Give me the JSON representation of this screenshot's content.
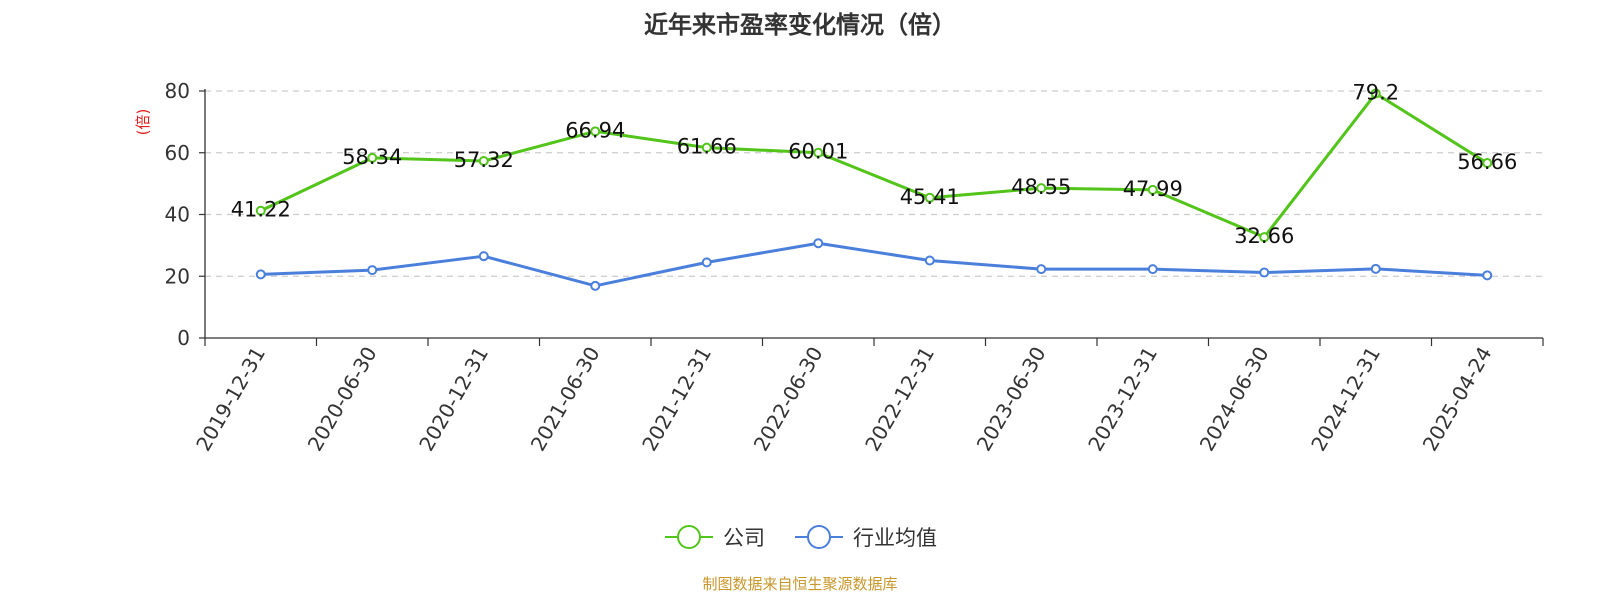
{
  "chart_data": {
    "type": "line",
    "title": "近年来市盈率变化情况（倍）",
    "ylabel": "(倍)",
    "ylim": [
      0,
      80
    ],
    "yticks": [
      0,
      20,
      40,
      60,
      80
    ],
    "grid": "horizontal dashed",
    "legend_position": "bottom-center",
    "categories": [
      "2019-12-31",
      "2020-06-30",
      "2020-12-31",
      "2021-06-30",
      "2021-12-31",
      "2022-06-30",
      "2022-12-31",
      "2023-06-30",
      "2023-12-31",
      "2024-06-30",
      "2024-12-31",
      "2025-04-24"
    ],
    "series": [
      {
        "name": "公司",
        "color": "#52c41a",
        "values": [
          41.22,
          58.34,
          57.32,
          66.94,
          61.66,
          60.01,
          45.41,
          48.55,
          47.99,
          32.66,
          79.2,
          56.66
        ],
        "labels": [
          "41.22",
          "58.34",
          "57.32",
          "66.94",
          "61.66",
          "60.01",
          "45.41",
          "48.55",
          "47.99",
          "32.66",
          "79.2",
          "56.66"
        ],
        "show_labels": true
      },
      {
        "name": "行业均值",
        "color": "#4a7fdc",
        "values": [
          20.6,
          22.0,
          26.5,
          16.9,
          24.5,
          30.7,
          25.1,
          22.3,
          22.3,
          21.2,
          22.4,
          20.3
        ],
        "show_labels": false
      }
    ]
  },
  "footer": {
    "source": "制图数据来自恒生聚源数据库",
    "source_color": "#c8962a"
  },
  "unit_color": "#e02020"
}
